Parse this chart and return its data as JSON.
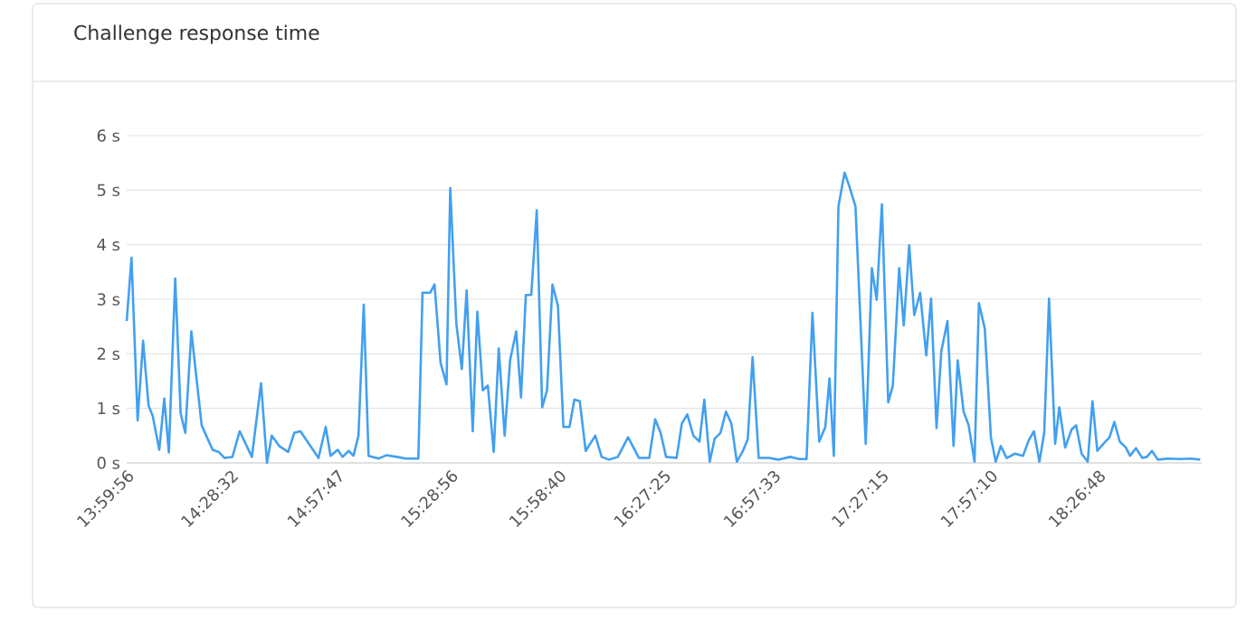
{
  "chart_data": {
    "type": "line",
    "title": "Challenge response time",
    "x": [
      13.999,
      14.021,
      14.049,
      14.074,
      14.099,
      14.118,
      14.148,
      14.171,
      14.192,
      14.221,
      14.246,
      14.267,
      14.295,
      14.342,
      14.392,
      14.42,
      14.447,
      14.483,
      14.516,
      14.572,
      14.614,
      14.641,
      14.663,
      14.697,
      14.738,
      14.766,
      14.794,
      14.877,
      14.91,
      14.932,
      14.965,
      14.987,
      15.015,
      15.037,
      15.06,
      15.084,
      15.106,
      15.153,
      15.187,
      15.236,
      15.278,
      15.334,
      15.353,
      15.388,
      15.408,
      15.436,
      15.463,
      15.48,
      15.508,
      15.533,
      15.555,
      15.583,
      15.604,
      15.629,
      15.652,
      15.679,
      15.702,
      15.729,
      15.754,
      15.782,
      15.804,
      15.826,
      15.851,
      15.876,
      15.901,
      15.923,
      15.948,
      15.973,
      15.998,
      16.026,
      16.048,
      16.073,
      16.1,
      16.144,
      16.173,
      16.206,
      16.247,
      16.294,
      16.344,
      16.391,
      16.418,
      16.443,
      16.468,
      16.516,
      16.54,
      16.565,
      16.593,
      16.621,
      16.643,
      16.668,
      16.69,
      16.717,
      16.742,
      16.767,
      16.792,
      16.82,
      16.842,
      16.864,
      16.892,
      16.939,
      16.981,
      17.036,
      17.078,
      17.111,
      17.138,
      17.169,
      17.197,
      17.216,
      17.236,
      17.257,
      17.285,
      17.307,
      17.335,
      17.382,
      17.41,
      17.432,
      17.456,
      17.485,
      17.506,
      17.535,
      17.556,
      17.581,
      17.604,
      17.631,
      17.659,
      17.681,
      17.706,
      17.728,
      17.756,
      17.784,
      17.803,
      17.83,
      17.853,
      17.88,
      17.9,
      17.927,
      17.955,
      17.977,
      18.0,
      18.027,
      18.066,
      18.102,
      18.129,
      18.152,
      18.177,
      18.199,
      18.221,
      18.249,
      18.268,
      18.295,
      18.324,
      18.345,
      18.37,
      18.398,
      18.42,
      18.442,
      18.47,
      18.498,
      18.52,
      18.545,
      18.573,
      18.592,
      18.619,
      18.648,
      18.669,
      18.692,
      18.719,
      18.766,
      18.822,
      18.869,
      18.913
    ],
    "series": [
      {
        "color": "#42a0f0",
        "values": [
          2.6,
          3.76,
          0.78,
          2.24,
          1.05,
          0.86,
          0.24,
          1.18,
          0.19,
          3.38,
          0.91,
          0.55,
          2.41,
          0.69,
          0.24,
          0.2,
          0.09,
          0.11,
          0.58,
          0.11,
          1.46,
          0,
          0.5,
          0.31,
          0.2,
          0.55,
          0.58,
          0.09,
          0.66,
          0.13,
          0.24,
          0.11,
          0.22,
          0.13,
          0.5,
          2.9,
          0.13,
          0.08,
          0.14,
          0.11,
          0.08,
          0.08,
          3.12,
          3.12,
          3.27,
          1.83,
          1.44,
          5.04,
          2.55,
          1.72,
          3.16,
          0.58,
          2.77,
          1.33,
          1.42,
          0.2,
          2.1,
          0.5,
          1.88,
          2.41,
          1.2,
          3.08,
          3.08,
          4.63,
          1.02,
          1.33,
          3.27,
          2.88,
          0.66,
          0.66,
          1.16,
          1.13,
          0.22,
          0.5,
          0.11,
          0.06,
          0.11,
          0.47,
          0.09,
          0.09,
          0.8,
          0.55,
          0.11,
          0.09,
          0.72,
          0.89,
          0.5,
          0.39,
          1.16,
          0.02,
          0.44,
          0.55,
          0.94,
          0.72,
          0.02,
          0.22,
          0.44,
          1.94,
          0.09,
          0.09,
          0.06,
          0.11,
          0.07,
          0.07,
          2.75,
          0.39,
          0.66,
          1.55,
          0.13,
          4.7,
          5.32,
          5.07,
          4.7,
          0.35,
          3.57,
          2.99,
          4.74,
          1.11,
          1.42,
          3.57,
          2.52,
          3.99,
          2.71,
          3.12,
          1.97,
          3.01,
          0.64,
          2.05,
          2.6,
          0.31,
          1.88,
          0.94,
          0.69,
          0.02,
          2.93,
          2.46,
          0.47,
          0.02,
          0.31,
          0.09,
          0.17,
          0.13,
          0.42,
          0.58,
          0.02,
          0.55,
          3.01,
          0.35,
          1.02,
          0.28,
          0.61,
          0.69,
          0.17,
          0.02,
          1.13,
          0.22,
          0.35,
          0.47,
          0.75,
          0.39,
          0.28,
          0.13,
          0.27,
          0.09,
          0.11,
          0.22,
          0.06,
          0.08,
          0.07,
          0.08,
          0.06
        ]
      }
    ],
    "xlim": [
      13.9989,
      18.92
    ],
    "xticks": [
      {
        "value": 13.9989,
        "label": "13:59:56"
      },
      {
        "value": 14.4756,
        "label": "14:28:32"
      },
      {
        "value": 14.9631,
        "label": "14:57:47"
      },
      {
        "value": 15.4822,
        "label": "15:28:56"
      },
      {
        "value": 15.9778,
        "label": "15:58:40"
      },
      {
        "value": 16.4569,
        "label": "16:27:25"
      },
      {
        "value": 16.9592,
        "label": "16:57:33"
      },
      {
        "value": 17.4542,
        "label": "17:27:15"
      },
      {
        "value": 17.9528,
        "label": "17:57:10"
      },
      {
        "value": 18.4467,
        "label": "18:26:48"
      }
    ],
    "ylim": [
      0,
      6
    ],
    "yticks": [
      {
        "value": 0,
        "label": "0 s"
      },
      {
        "value": 1,
        "label": "1 s"
      },
      {
        "value": 2,
        "label": "2 s"
      },
      {
        "value": 3,
        "label": "3 s"
      },
      {
        "value": 4,
        "label": "4 s"
      },
      {
        "value": 5,
        "label": "5 s"
      },
      {
        "value": 6,
        "label": "6 s"
      }
    ],
    "grid": "y",
    "legend": false,
    "marker": "none",
    "line_style": "solid"
  }
}
